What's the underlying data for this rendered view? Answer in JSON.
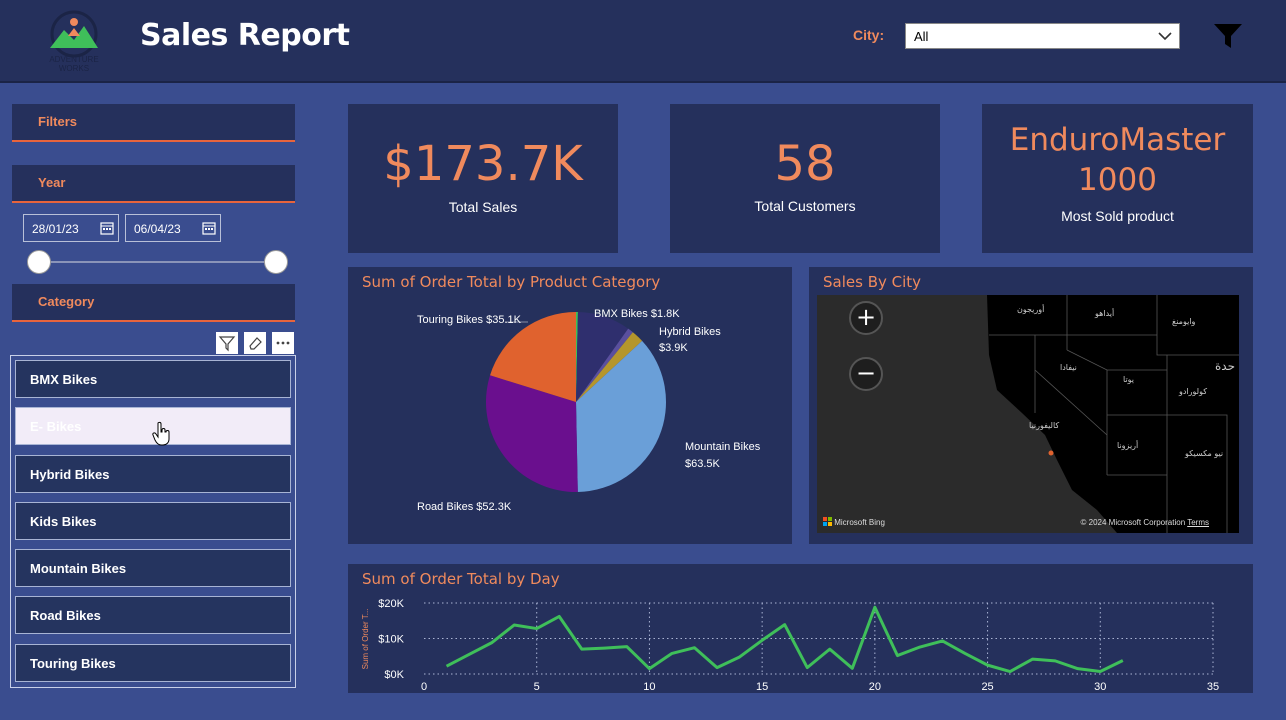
{
  "header": {
    "title": "Sales Report",
    "city_label": "City:",
    "city_value": "All",
    "logo_text_line1": "ADVENTURE",
    "logo_text_line2": "WORKS"
  },
  "filters": {
    "title": "Filters",
    "year_title": "Year",
    "date_start": "28/01/23",
    "date_end": "06/04/23",
    "category_title": "Category",
    "category_items": [
      {
        "label": "BMX Bikes"
      },
      {
        "label": "E- Bikes"
      },
      {
        "label": "Hybrid Bikes"
      },
      {
        "label": "Kids Bikes"
      },
      {
        "label": "Mountain Bikes"
      },
      {
        "label": "Road Bikes"
      },
      {
        "label": "Touring Bikes"
      }
    ]
  },
  "kpis": [
    {
      "value": "$173.7K",
      "label": "Total Sales"
    },
    {
      "value": "58",
      "label": "Total Customers"
    },
    {
      "value_line1": "EnduroMaster",
      "value_line2": "1000",
      "label": "Most Sold product"
    }
  ],
  "colors": {
    "accent": "#f08a5d",
    "panel": "#25305c",
    "background": "#3a4d8f",
    "line": "#3fbf5a"
  },
  "pie_chart": {
    "title": "Sum of Order Total by Product Category",
    "labels": {
      "touring": "Touring Bikes $35.1K",
      "bmx": "BMX Bikes $1.8K",
      "hybrid_1": "Hybrid Bikes",
      "hybrid_2": "$3.9K",
      "mountain_1": "Mountain Bikes",
      "mountain_2": "$63.5K",
      "road": "Road Bikes $52.3K"
    }
  },
  "map": {
    "title": "Sales By City",
    "provider": "Microsoft Bing",
    "copyright": "© 2024 Microsoft Corporation",
    "terms": "Terms",
    "place_labels": [
      "أوريجون",
      "أيداهو",
      "وايومنغ",
      "نيفادا",
      "يوتا",
      "كولورادو",
      "كاليفورنيا",
      "أريزونا",
      "نيو مكسيكو",
      "حدة"
    ]
  },
  "chart_data": [
    {
      "type": "pie",
      "title": "Sum of Order Total by Product Category",
      "categories": [
        "Mountain Bikes",
        "Road Bikes",
        "Touring Bikes",
        "E- Bikes",
        "Kids Bikes",
        "BMX Bikes",
        "Hybrid Bikes"
      ],
      "values": [
        63.5,
        52.3,
        35.1,
        0.6,
        16.5,
        1.8,
        3.9
      ],
      "unit": "$K",
      "colors": [
        "#6a9fd8",
        "#6a0f8e",
        "#e0622e",
        "#3fbf5a",
        "#2f2f6e",
        "#5a4f9e",
        "#b5962c"
      ]
    },
    {
      "type": "line",
      "title": "Sum of Order Total by Day",
      "xlabel": "",
      "ylabel": "Sum of Order T...",
      "xlim": [
        0,
        35
      ],
      "ylim": [
        0,
        20000
      ],
      "xticks": [
        "0",
        "5",
        "10",
        "15",
        "20",
        "25",
        "30",
        "35"
      ],
      "yticks": [
        "$0K",
        "$10K",
        "$20K"
      ],
      "x": [
        1,
        2,
        3,
        4,
        5,
        6,
        7,
        8,
        9,
        10,
        11,
        12,
        13,
        14,
        15,
        16,
        17,
        18,
        19,
        20,
        21,
        22,
        23,
        24,
        25,
        26,
        27,
        28,
        29,
        30,
        31
      ],
      "series": [
        {
          "name": "Sum of Order Total",
          "values": [
            2200,
            5500,
            8800,
            13800,
            12800,
            16200,
            7000,
            7300,
            7700,
            1500,
            5800,
            7400,
            1800,
            4800,
            9500,
            13900,
            1800,
            7000,
            1600,
            18800,
            5200,
            7600,
            9300,
            5800,
            2500,
            700,
            4200,
            3700,
            1500,
            700,
            3800
          ]
        }
      ]
    }
  ]
}
